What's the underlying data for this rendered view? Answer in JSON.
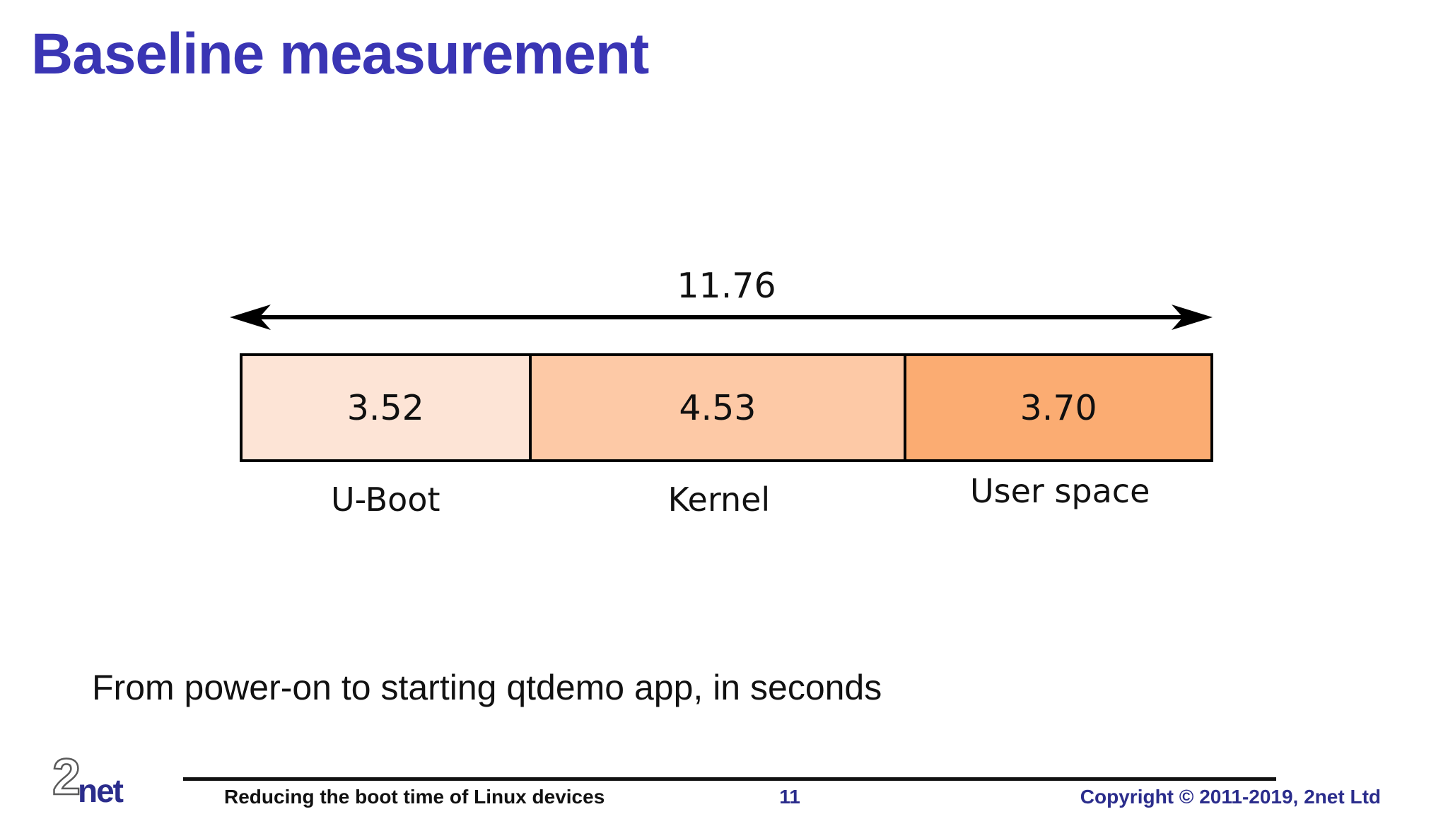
{
  "slide": {
    "title": "Baseline measurement",
    "caption": "From power-on to starting qtdemo app, in seconds"
  },
  "chart_data": {
    "type": "bar",
    "subtype": "horizontal-stacked-proportional",
    "title": "",
    "unit": "seconds",
    "total_label": "11.76",
    "total": 11.76,
    "categories": [
      "U-Boot",
      "Kernel",
      "User space"
    ],
    "values": [
      3.52,
      4.53,
      3.7
    ],
    "segments": [
      {
        "label": "U-Boot",
        "value": 3.52,
        "value_label": "3.52",
        "color": "#fde4d6"
      },
      {
        "label": "Kernel",
        "value": 4.53,
        "value_label": "4.53",
        "color": "#fdc9a6"
      },
      {
        "label": "User space",
        "value": 3.7,
        "value_label": "3.70",
        "color": "#fbac72"
      }
    ],
    "annotations": [
      "double-headed arrow spanning full bar labelled 11.76"
    ],
    "layout": {
      "bar_border_color": "#000000",
      "arrow_color": "#000000",
      "value_labels_inside": true,
      "category_labels_below": true
    }
  },
  "footer": {
    "logo_2": "2",
    "logo_net": "net",
    "deck_title": "Reducing the boot time of Linux devices",
    "page_number": "11",
    "copyright": "Copyright © 2011-2019, 2net Ltd"
  },
  "colors": {
    "title_text": "#3a35b4",
    "footer_navy": "#2b2d8c",
    "body_text": "#111111",
    "background": "#ffffff"
  }
}
